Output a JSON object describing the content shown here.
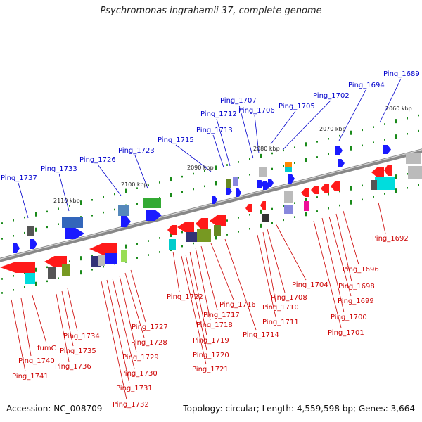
{
  "title": "Psychromonas ingrahamii 37, complete genome",
  "footer": {
    "accession": "Accession: NC_008709",
    "summary": "Topology: circular; Length: 4,559,598 bp; Genes: 3,664"
  },
  "colors": {
    "top_labels": "#0000cc",
    "bottom_labels": "#cc0000",
    "forward_strand": "#1a1aff",
    "reverse_strand": "#ff1a1a",
    "backbone": "#777777",
    "tick": "#1a8a1a"
  },
  "scale_labels": [
    "2060 kbp",
    "2070 kbp",
    "2080 kbp",
    "2090 kbp",
    "2100 kbp",
    "2110 kbp"
  ],
  "top_gene_labels": [
    "Ping_1689",
    "Ping_1694",
    "Ping_1702",
    "Ping_1705",
    "Ping_1706",
    "Ping_1707",
    "Ping_1712",
    "Ping_1713",
    "Ping_1715",
    "Ping_1723",
    "Ping_1726",
    "Ping_1733",
    "Ping_1737"
  ],
  "bottom_gene_labels": [
    "Ping_1692",
    "Ping_1696",
    "Ping_1698",
    "Ping_1699",
    "Ping_1700",
    "Ping_1701",
    "Ping_1704",
    "Ping_1708",
    "Ping_1710",
    "Ping_1711",
    "Ping_1714",
    "Ping_1716",
    "Ping_1717",
    "Ping_1718",
    "Ping_1719",
    "Ping_1720",
    "Ping_1721",
    "Ping_1722",
    "Ping_1727",
    "Ping_1728",
    "Ping_1729",
    "Ping_1730",
    "Ping_1731",
    "Ping_1732",
    "Ping_1734",
    "Ping_1735",
    "Ping_1736",
    "fumC",
    "Ping_1740",
    "Ping_1741"
  ]
}
